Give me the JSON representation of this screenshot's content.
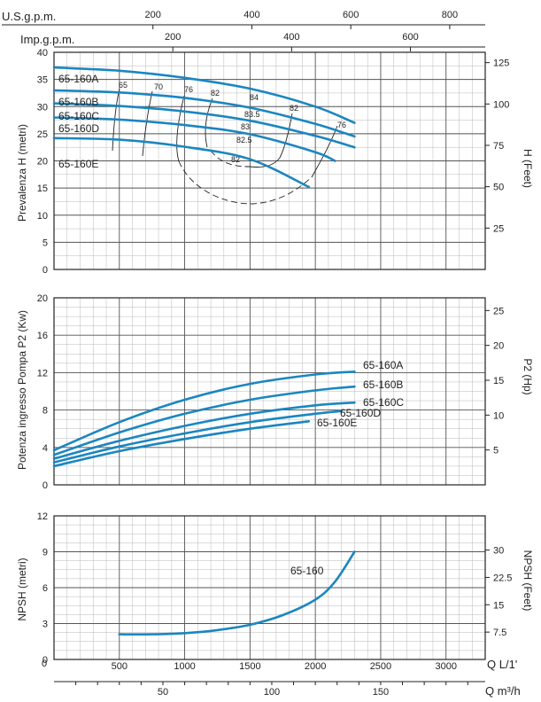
{
  "top_axes": {
    "usgpm": {
      "label": "U.S.g.p.m.",
      "ticks": [
        200,
        400,
        600,
        800
      ]
    },
    "impgpm": {
      "label": "Imp.g.p.m.",
      "ticks": [
        200,
        400,
        600
      ]
    }
  },
  "bottom_axes": {
    "lmin": {
      "label": "Q L/1'",
      "ticks": [
        500,
        1000,
        1500,
        2000,
        2500,
        3000
      ]
    },
    "m3h": {
      "label": "Q m³/h",
      "ticks": [
        50,
        100,
        150
      ]
    }
  },
  "colors": {
    "curve": "#1b86c0",
    "grid": "#b8b8b8",
    "text": "#222222"
  },
  "chart_data": [
    {
      "type": "line",
      "name": "head",
      "ylabel": "Prevalenza H (metri)",
      "ylabel_right": "H (Feet)",
      "xlim": [
        0,
        3300
      ],
      "ylim": [
        0,
        40
      ],
      "yticks": [
        0,
        5,
        10,
        15,
        20,
        25,
        30,
        35,
        40
      ],
      "yticks_right": [
        25,
        50,
        75,
        100,
        125
      ],
      "series": [
        {
          "name": "65-160A",
          "x": [
            0,
            500,
            1000,
            1500,
            2000,
            2300
          ],
          "y": [
            37.2,
            36.6,
            35.3,
            33.3,
            30.0,
            27.0
          ]
        },
        {
          "name": "65-160B",
          "x": [
            0,
            500,
            1000,
            1500,
            2000,
            2300
          ],
          "y": [
            33.0,
            32.6,
            31.6,
            29.8,
            26.8,
            24.5
          ]
        },
        {
          "name": "65-160C",
          "x": [
            0,
            500,
            1000,
            1500,
            2000,
            2300
          ],
          "y": [
            30.6,
            30.1,
            29.1,
            27.4,
            24.6,
            22.5
          ]
        },
        {
          "name": "65-160D",
          "x": [
            0,
            500,
            1000,
            1500,
            2000,
            2150
          ],
          "y": [
            28.0,
            27.6,
            26.6,
            24.9,
            21.6,
            20.0
          ]
        },
        {
          "name": "65-160E",
          "x": [
            0,
            500,
            1000,
            1500,
            1950
          ],
          "y": [
            24.2,
            23.9,
            22.6,
            20.3,
            15.2
          ]
        }
      ],
      "efficiency_labels": [
        "65",
        "70",
        "76",
        "82",
        "84",
        "83.5",
        "83",
        "82.5",
        "82",
        "82",
        "76"
      ]
    },
    {
      "type": "line",
      "name": "power",
      "ylabel": "Potenza ingresso Pompa P2 (Kw)",
      "ylabel_right": "P2 (Hp)",
      "xlim": [
        0,
        3300
      ],
      "ylim": [
        0,
        20
      ],
      "yticks": [
        0,
        4,
        8,
        12,
        16,
        20
      ],
      "yticks_right": [
        5,
        10,
        15,
        20,
        25
      ],
      "series": [
        {
          "name": "65-160A",
          "x": [
            0,
            500,
            1000,
            1500,
            2000,
            2300
          ],
          "y": [
            3.7,
            6.7,
            9.1,
            10.8,
            11.8,
            12.1
          ]
        },
        {
          "name": "65-160B",
          "x": [
            0,
            500,
            1000,
            1500,
            2000,
            2300
          ],
          "y": [
            3.2,
            5.6,
            7.6,
            9.1,
            10.1,
            10.5
          ]
        },
        {
          "name": "65-160C",
          "x": [
            0,
            500,
            1000,
            1500,
            2000,
            2300
          ],
          "y": [
            2.8,
            4.7,
            6.3,
            7.6,
            8.5,
            8.8
          ]
        },
        {
          "name": "65-160D",
          "x": [
            0,
            500,
            1000,
            1500,
            2000,
            2200
          ],
          "y": [
            2.4,
            4.1,
            5.5,
            6.7,
            7.6,
            7.9
          ]
        },
        {
          "name": "65-160E",
          "x": [
            0,
            500,
            1000,
            1500,
            1950
          ],
          "y": [
            2.0,
            3.6,
            4.9,
            6.0,
            6.8
          ]
        }
      ]
    },
    {
      "type": "line",
      "name": "npsh",
      "ylabel": "NPSH (metri)",
      "ylabel_right": "NPSH (Feet)",
      "xlim": [
        0,
        3300
      ],
      "ylim": [
        0,
        12
      ],
      "yticks": [
        0,
        3,
        6,
        9,
        12
      ],
      "yticks_right": [
        7.5,
        15,
        22.5,
        30
      ],
      "series": [
        {
          "name": "65-160",
          "x": [
            500,
            750,
            1000,
            1250,
            1500,
            1750,
            2000,
            2150,
            2300
          ],
          "y": [
            2.1,
            2.1,
            2.2,
            2.45,
            2.9,
            3.7,
            5.0,
            6.5,
            9.0
          ]
        }
      ]
    }
  ]
}
